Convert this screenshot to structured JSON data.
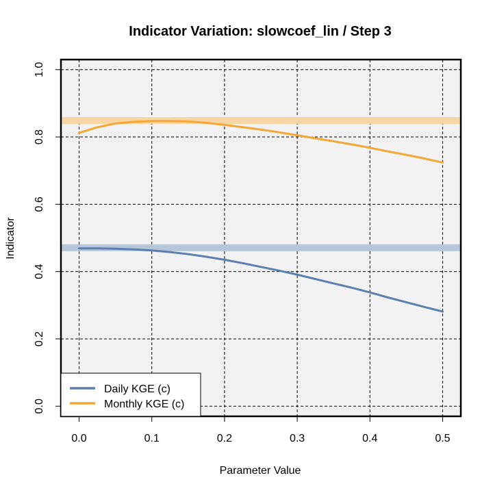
{
  "chart_data": {
    "type": "line",
    "title": "Indicator Variation: slowcoef_lin / Step 3",
    "xlabel": "Parameter Value",
    "ylabel": "Indicator",
    "xlim": [
      -0.025,
      0.525
    ],
    "ylim": [
      -0.03,
      1.03
    ],
    "xticks": [
      0.0,
      0.1,
      0.2,
      0.3,
      0.4,
      0.5
    ],
    "xtick_labels": [
      "0.0",
      "0.1",
      "0.2",
      "0.3",
      "0.4",
      "0.5"
    ],
    "yticks": [
      0.0,
      0.2,
      0.4,
      0.6,
      0.8,
      1.0
    ],
    "ytick_labels": [
      "0.0",
      "0.2",
      "0.4",
      "0.6",
      "0.8",
      "1.0"
    ],
    "grid": true,
    "legend_position": "bottom-left",
    "background": "#f2f2f2",
    "x": [
      0.0,
      0.025,
      0.05,
      0.075,
      0.1,
      0.125,
      0.15,
      0.175,
      0.2,
      0.225,
      0.25,
      0.275,
      0.3,
      0.325,
      0.35,
      0.375,
      0.4,
      0.425,
      0.45,
      0.475,
      0.5
    ],
    "series": [
      {
        "name": "Daily KGE (c)",
        "color": "#5b7fae",
        "values": [
          0.469,
          0.469,
          0.468,
          0.466,
          0.463,
          0.458,
          0.452,
          0.444,
          0.435,
          0.425,
          0.414,
          0.403,
          0.391,
          0.378,
          0.365,
          0.352,
          0.338,
          0.323,
          0.309,
          0.295,
          0.281
        ],
        "reference": 0.471,
        "reference_color": "#b5c6da"
      },
      {
        "name": "Monthly KGE (c)",
        "color": "#f5a733",
        "values": [
          0.812,
          0.829,
          0.84,
          0.845,
          0.847,
          0.847,
          0.846,
          0.842,
          0.836,
          0.829,
          0.822,
          0.814,
          0.805,
          0.796,
          0.787,
          0.778,
          0.768,
          0.757,
          0.747,
          0.736,
          0.724
        ],
        "reference": 0.849,
        "reference_color": "#f7d6a6"
      }
    ]
  }
}
